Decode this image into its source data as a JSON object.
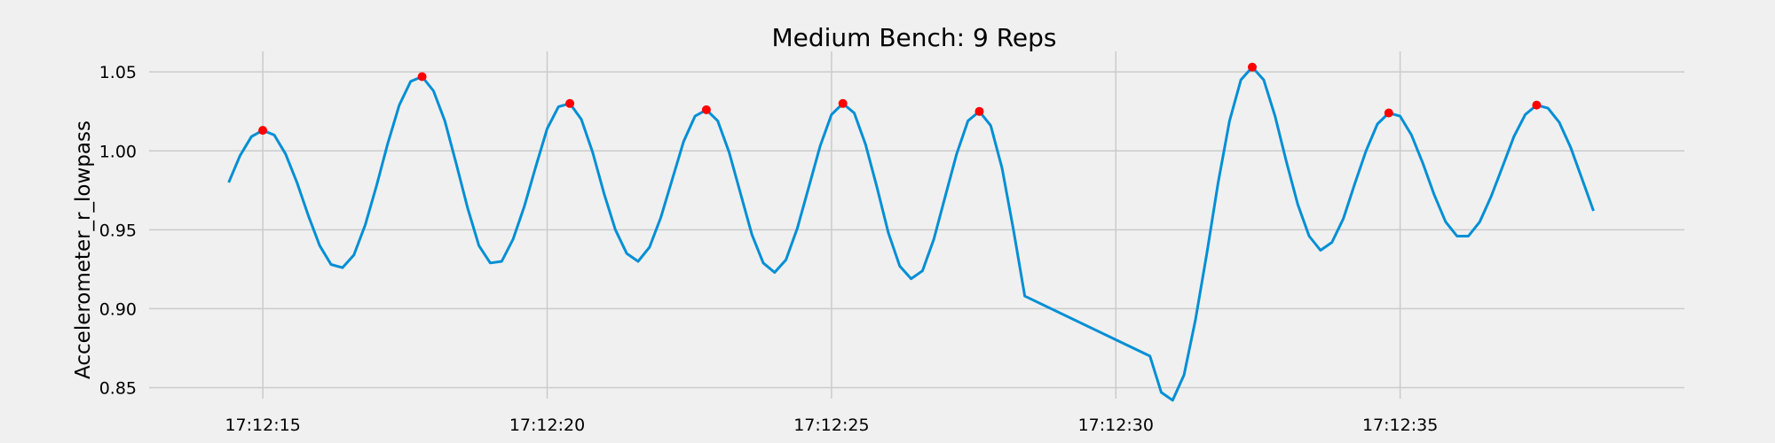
{
  "chart_data": {
    "type": "line",
    "title": "Medium Bench: 9 Reps",
    "xlabel": "",
    "ylabel": "Accelerometer_r_lowpass",
    "xlim": [
      "17:12:13.0",
      "17:12:40.0"
    ],
    "ylim": [
      0.843,
      1.063
    ],
    "grid": true,
    "legend": "none",
    "colors": {
      "background": "#f0f0f0",
      "line": "#008fd5",
      "peaks": "#ff0000",
      "grid": "#cbcbcb"
    },
    "x_ticks": [
      "17:12:15",
      "17:12:20",
      "17:12:25",
      "17:12:30",
      "17:12:35"
    ],
    "y_ticks": [
      "0.85",
      "0.90",
      "0.95",
      "1.00",
      "1.05"
    ],
    "series": [
      {
        "style": "line",
        "x": [
          "17:12:14.4",
          "17:12:14.6",
          "17:12:14.8",
          "17:12:15.0",
          "17:12:15.2",
          "17:12:15.4",
          "17:12:15.6",
          "17:12:15.8",
          "17:12:16.0",
          "17:12:16.2",
          "17:12:16.4",
          "17:12:16.6",
          "17:12:16.8",
          "17:12:17.0",
          "17:12:17.2",
          "17:12:17.4",
          "17:12:17.6",
          "17:12:17.8",
          "17:12:18.0",
          "17:12:18.2",
          "17:12:18.4",
          "17:12:18.6",
          "17:12:18.8",
          "17:12:19.0",
          "17:12:19.2",
          "17:12:19.4",
          "17:12:19.6",
          "17:12:19.8",
          "17:12:20.0",
          "17:12:20.2",
          "17:12:20.4",
          "17:12:20.6",
          "17:12:20.8",
          "17:12:21.0",
          "17:12:21.2",
          "17:12:21.4",
          "17:12:21.6",
          "17:12:21.8",
          "17:12:22.0",
          "17:12:22.2",
          "17:12:22.4",
          "17:12:22.6",
          "17:12:22.8",
          "17:12:23.0",
          "17:12:23.2",
          "17:12:23.4",
          "17:12:23.6",
          "17:12:23.8",
          "17:12:24.0",
          "17:12:24.2",
          "17:12:24.4",
          "17:12:24.6",
          "17:12:24.8",
          "17:12:25.0",
          "17:12:25.2",
          "17:12:25.4",
          "17:12:25.6",
          "17:12:25.8",
          "17:12:26.0",
          "17:12:26.2",
          "17:12:26.4",
          "17:12:26.6",
          "17:12:26.8",
          "17:12:27.0",
          "17:12:27.2",
          "17:12:27.4",
          "17:12:27.6",
          "17:12:27.8",
          "17:12:28.0",
          "17:12:28.2",
          "17:12:28.4",
          "17:12:30.6",
          "17:12:30.8",
          "17:12:31.0",
          "17:12:31.2",
          "17:12:31.4",
          "17:12:31.6",
          "17:12:31.8",
          "17:12:32.0",
          "17:12:32.2",
          "17:12:32.4",
          "17:12:32.6",
          "17:12:32.8",
          "17:12:33.0",
          "17:12:33.2",
          "17:12:33.4",
          "17:12:33.6",
          "17:12:33.8",
          "17:12:34.0",
          "17:12:34.2",
          "17:12:34.4",
          "17:12:34.6",
          "17:12:34.8",
          "17:12:35.0",
          "17:12:35.2",
          "17:12:35.4",
          "17:12:35.6",
          "17:12:35.8",
          "17:12:36.0",
          "17:12:36.2",
          "17:12:36.4",
          "17:12:36.6",
          "17:12:36.8",
          "17:12:37.0",
          "17:12:37.2",
          "17:12:37.4",
          "17:12:37.6",
          "17:12:37.8",
          "17:12:38.0",
          "17:12:38.2",
          "17:12:38.4"
        ],
        "y": [
          0.98,
          0.997,
          1.009,
          1.013,
          1.01,
          0.998,
          0.98,
          0.959,
          0.94,
          0.928,
          0.926,
          0.934,
          0.953,
          0.978,
          1.005,
          1.029,
          1.044,
          1.047,
          1.038,
          1.019,
          0.992,
          0.964,
          0.94,
          0.929,
          0.93,
          0.944,
          0.965,
          0.99,
          1.014,
          1.028,
          1.03,
          1.02,
          0.999,
          0.973,
          0.95,
          0.935,
          0.93,
          0.939,
          0.958,
          0.982,
          1.006,
          1.022,
          1.026,
          1.019,
          0.999,
          0.973,
          0.947,
          0.929,
          0.923,
          0.931,
          0.951,
          0.977,
          1.003,
          1.023,
          1.03,
          1.024,
          1.004,
          0.977,
          0.948,
          0.927,
          0.919,
          0.924,
          0.944,
          0.971,
          0.998,
          1.019,
          1.025,
          1.016,
          0.989,
          0.95,
          0.908,
          0.87,
          0.847,
          0.842,
          0.858,
          0.893,
          0.935,
          0.98,
          1.019,
          1.045,
          1.053,
          1.045,
          1.022,
          0.993,
          0.966,
          0.946,
          0.937,
          0.942,
          0.957,
          0.979,
          1.0,
          1.017,
          1.024,
          1.022,
          1.01,
          0.992,
          0.972,
          0.955,
          0.946,
          0.946,
          0.955,
          0.971,
          0.99,
          1.009,
          1.023,
          1.029,
          1.027,
          1.018,
          1.002,
          0.982,
          0.962
        ]
      },
      {
        "style": "points",
        "x": [
          "17:12:15.0",
          "17:12:17.8",
          "17:12:20.4",
          "17:12:22.8",
          "17:12:25.2",
          "17:12:27.6",
          "17:12:32.4",
          "17:12:34.8",
          "17:12:37.4"
        ],
        "y": [
          1.013,
          1.047,
          1.03,
          1.026,
          1.03,
          1.025,
          1.053,
          1.024,
          1.029
        ]
      }
    ]
  }
}
